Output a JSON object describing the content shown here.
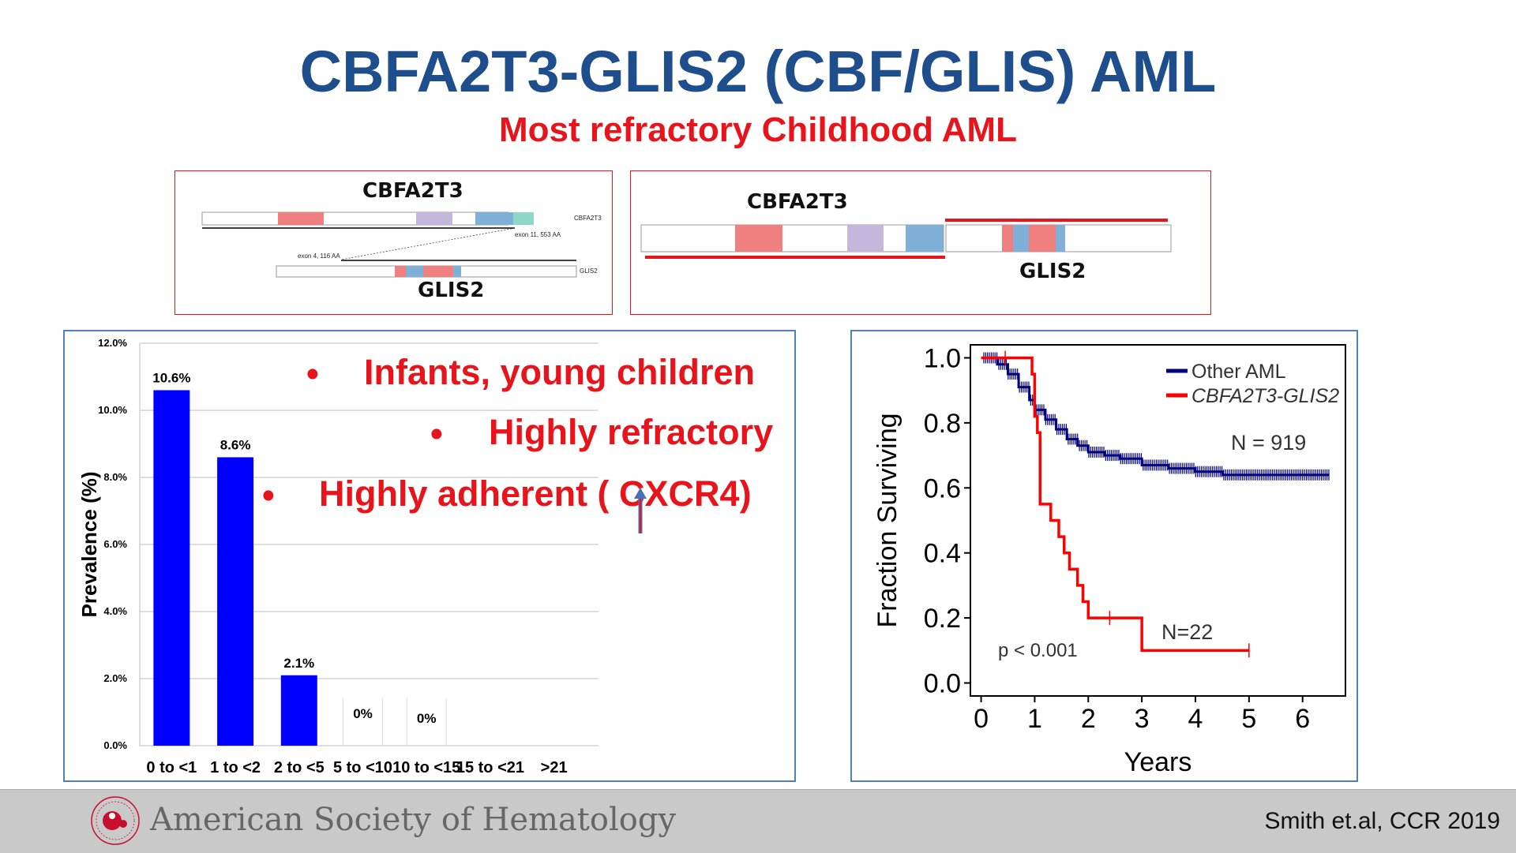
{
  "slide": {
    "title": "CBFA2T3-GLIS2 (CBF/GLIS) AML",
    "subtitle": "Most refractory Childhood AML",
    "bullets": [
      {
        "bullet": "•",
        "text": "Infants,  young children"
      },
      {
        "bullet": "•",
        "text": "Highly refractory"
      },
      {
        "bullet": "•",
        "text": "Highly adherent (   CXCR4)"
      }
    ],
    "citation": "Smith et.al, CCR 2019",
    "organization": "American Society of Hematology",
    "logo_icon": "ash-logo-icon"
  },
  "fusion_diagram_left": {
    "gene_top": "CBFA2T3",
    "gene_bottom": "GLIS2",
    "track_label_top": "CBFA2T3",
    "track_label_bottom": "GLIS2",
    "exon_top": "exon 11, 553 AA",
    "exon_bottom": "exon 4, 116 AA"
  },
  "fusion_diagram_right": {
    "gene_left": "CBFA2T3",
    "gene_right": "GLIS2"
  },
  "colors": {
    "title": "#1f4e8c",
    "accent_red": "#e8141b",
    "bar_blue": "#0000ff",
    "km_other": "#000080",
    "km_fusion": "#ff0000",
    "domain_red": "#f08080",
    "domain_purple": "#c3b8dc",
    "domain_blue": "#7fb0d8",
    "domain_teal": "#8fd8c8"
  },
  "chart_data": [
    {
      "type": "bar",
      "title": "",
      "xlabel": "",
      "ylabel": "Prevalence (%)",
      "categories": [
        "0 to <1",
        "1 to <2",
        "2 to <5",
        "5 to <10",
        "10 to <15",
        "15 to <21",
        ">21"
      ],
      "values": [
        10.6,
        8.6,
        2.1,
        0,
        0,
        null,
        null
      ],
      "data_labels": [
        "10.6%",
        "8.6%",
        "2.1%",
        "0%",
        "0%",
        "",
        ""
      ],
      "ylim": [
        0,
        12
      ],
      "yticks": [
        "0.0%",
        "2.0%",
        "4.0%",
        "6.0%",
        "8.0%",
        "10.0%",
        "12.0%"
      ],
      "grid": true
    },
    {
      "type": "line",
      "title": "",
      "xlabel": "Years",
      "ylabel": "Fraction Surviving",
      "xlim": [
        -0.2,
        6.8
      ],
      "ylim": [
        -0.04,
        1.04
      ],
      "xticks": [
        "0",
        "1",
        "2",
        "3",
        "4",
        "5",
        "6"
      ],
      "yticks": [
        "0.0",
        "0.2",
        "0.4",
        "0.6",
        "0.8",
        "1.0"
      ],
      "legend_position": "top-right",
      "series": [
        {
          "name": "Other AML",
          "color": "#000080",
          "x": [
            0,
            0.3,
            0.5,
            0.7,
            0.9,
            1.0,
            1.2,
            1.4,
            1.6,
            1.8,
            2.0,
            2.3,
            2.6,
            3.0,
            3.5,
            4.0,
            4.5,
            5.0,
            5.5,
            6.0,
            6.5
          ],
          "y": [
            1.0,
            0.98,
            0.95,
            0.91,
            0.87,
            0.84,
            0.81,
            0.78,
            0.75,
            0.73,
            0.71,
            0.7,
            0.69,
            0.67,
            0.66,
            0.65,
            0.64,
            0.64,
            0.64,
            0.64,
            0.64
          ],
          "annotation": "N = 919"
        },
        {
          "name": "CBFA2T3-GLIS2",
          "color": "#ff0000",
          "x": [
            0,
            0.9,
            0.95,
            1.0,
            1.05,
            1.1,
            1.3,
            1.45,
            1.55,
            1.65,
            1.8,
            1.9,
            2.0,
            3.0,
            4.0,
            5.0
          ],
          "y": [
            1.0,
            1.0,
            0.95,
            0.82,
            0.77,
            0.55,
            0.5,
            0.45,
            0.4,
            0.35,
            0.3,
            0.25,
            0.2,
            0.1,
            0.1,
            0.1
          ],
          "annotation": "N=22"
        }
      ],
      "annotations": [
        "p < 0.001"
      ]
    }
  ]
}
